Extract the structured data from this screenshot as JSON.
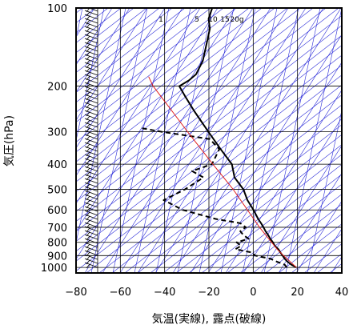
{
  "chart_data": {
    "type": "line",
    "subtype": "skew-T log-P diagram",
    "xlabel": "気温(実線), 露点(破線)",
    "ylabel": "気圧(hPa)",
    "x_ticks": [
      -80,
      -60,
      -40,
      -20,
      0,
      20,
      40
    ],
    "y_ticks": [
      100,
      200,
      300,
      400,
      500,
      600,
      700,
      800,
      900,
      1000
    ],
    "xlim": [
      -80,
      40
    ],
    "ylim": [
      1050,
      100
    ],
    "y_scale": "log",
    "grid": true,
    "mixing_ratio_labels": [
      "1",
      "5",
      "10",
      "15",
      "20g"
    ],
    "colors": {
      "temperature": "#000000",
      "dewpoint": "#000000",
      "parcel": "#e02020",
      "background_lines": "#2a2ad8",
      "grid": "#000000"
    },
    "series": [
      {
        "style": "solid",
        "points": [
          {
            "p": 1000,
            "t": 18.6
          },
          {
            "p": 975,
            "t": 15.8
          },
          {
            "p": 950,
            "t": 13.6
          },
          {
            "p": 925,
            "t": 11.8
          },
          {
            "p": 900,
            "t": 10.4
          },
          {
            "p": 875,
            "t": 8.8
          },
          {
            "p": 850,
            "t": 7.4
          },
          {
            "p": 825,
            "t": 5.2
          },
          {
            "p": 800,
            "t": 3.8
          },
          {
            "p": 775,
            "t": 2.0
          },
          {
            "p": 750,
            "t": 0.4
          },
          {
            "p": 725,
            "t": -1.4
          },
          {
            "p": 700,
            "t": -3.0
          },
          {
            "p": 675,
            "t": -4.8
          },
          {
            "p": 650,
            "t": -6.8
          },
          {
            "p": 600,
            "t": -10.4
          },
          {
            "p": 550,
            "t": -14.8
          },
          {
            "p": 500,
            "t": -18.4
          },
          {
            "p": 450,
            "t": -24.4
          },
          {
            "p": 400,
            "t": -27.8
          },
          {
            "p": 350,
            "t": -35.4
          },
          {
            "p": 300,
            "t": -43.8
          },
          {
            "p": 250,
            "t": -53.6
          },
          {
            "p": 220,
            "t": -60.0
          },
          {
            "p": 200,
            "t": -64.6
          },
          {
            "p": 190,
            "t": -61.2
          },
          {
            "p": 180,
            "t": -59.0
          },
          {
            "p": 160,
            "t": -58.2
          },
          {
            "p": 140,
            "t": -59.2
          },
          {
            "p": 120,
            "t": -60.4
          },
          {
            "p": 110,
            "t": -62.6
          },
          {
            "p": 100,
            "t": -62.8
          }
        ]
      },
      {
        "style": "dashed",
        "points": [
          {
            "p": 1000,
            "t": 14.2
          },
          {
            "p": 975,
            "t": 12.8
          },
          {
            "p": 950,
            "t": 8.8
          },
          {
            "p": 925,
            "t": 5.4
          },
          {
            "p": 900,
            "t": -2.0
          },
          {
            "p": 875,
            "t": -4.2
          },
          {
            "p": 850,
            "t": -12.0
          },
          {
            "p": 825,
            "t": -10.0
          },
          {
            "p": 800,
            "t": -12.6
          },
          {
            "p": 775,
            "t": -7.8
          },
          {
            "p": 750,
            "t": -10.8
          },
          {
            "p": 725,
            "t": -12.8
          },
          {
            "p": 700,
            "t": -11.0
          },
          {
            "p": 675,
            "t": -14.2
          },
          {
            "p": 650,
            "t": -26.0
          },
          {
            "p": 600,
            "t": -42.4
          },
          {
            "p": 550,
            "t": -52.6
          },
          {
            "p": 500,
            "t": -44.8
          },
          {
            "p": 450,
            "t": -38.4
          },
          {
            "p": 425,
            "t": -44.6
          },
          {
            "p": 400,
            "t": -36.8
          },
          {
            "p": 350,
            "t": -36.0
          },
          {
            "p": 320,
            "t": -42.0
          },
          {
            "p": 300,
            "t": -64.8
          },
          {
            "p": 290,
            "t": -75.0
          }
        ]
      },
      {
        "style": "solid",
        "points": [
          {
            "p": 1000,
            "t": 18.6
          },
          {
            "p": 900,
            "t": 10.8
          },
          {
            "p": 850,
            "t": 6.8
          },
          {
            "p": 700,
            "t": -4.8
          },
          {
            "p": 500,
            "t": -23.0
          },
          {
            "p": 400,
            "t": -36.4
          },
          {
            "p": 300,
            "t": -53.2
          },
          {
            "p": 250,
            "t": -63.6
          },
          {
            "p": 200,
            "t": -76.4
          },
          {
            "p": 184,
            "t": -80.0
          }
        ]
      }
    ]
  }
}
